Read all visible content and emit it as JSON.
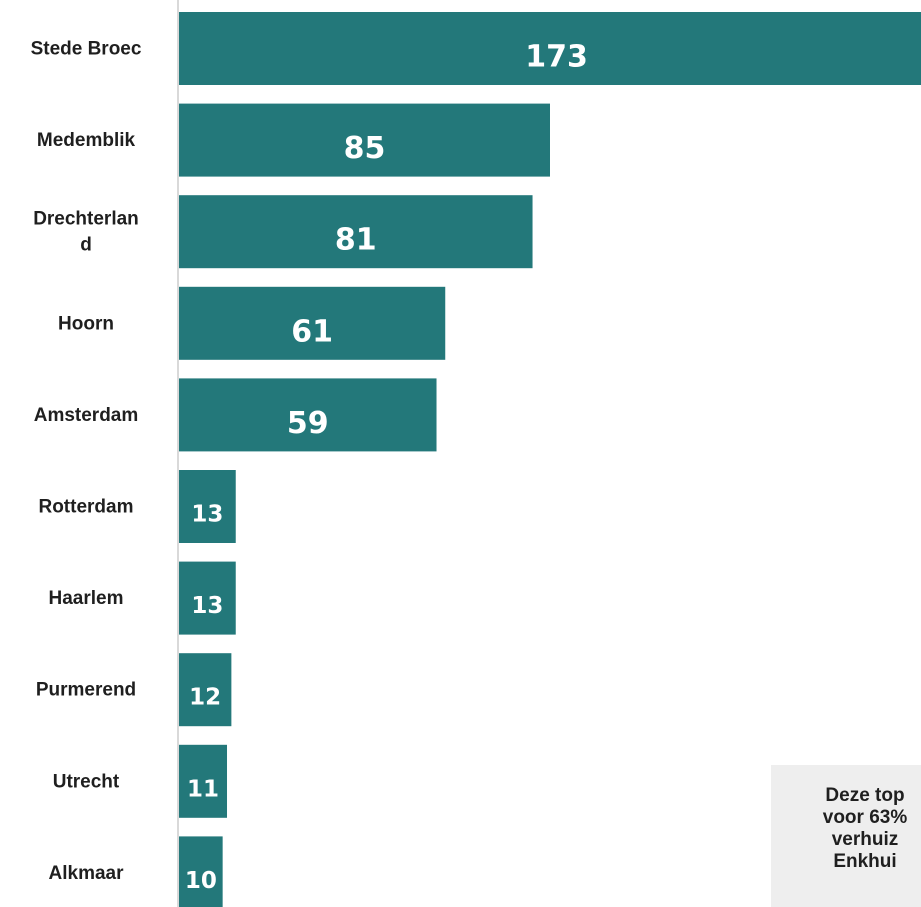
{
  "chart_data": {
    "type": "bar",
    "orientation": "horizontal",
    "categories": [
      "Stede Broec",
      "Medemblik",
      "Drechterland",
      "Hoorn",
      "Amsterdam",
      "Rotterdam",
      "Haarlem",
      "Purmerend",
      "Utrecht",
      "Alkmaar"
    ],
    "category_display": [
      "Stede Broec",
      "Medemblik",
      "Drechterlan\nd",
      "Hoorn",
      "Amsterdam",
      "Rotterdam",
      "Haarlem",
      "Purmerend",
      "Utrecht",
      "Alkmaar"
    ],
    "values": [
      173,
      85,
      81,
      61,
      59,
      13,
      13,
      12,
      11,
      10
    ],
    "value_labels": [
      "173",
      "85",
      "81",
      "61",
      "59",
      "13",
      "13",
      "12",
      "11",
      "10"
    ],
    "title": "",
    "xlabel": "",
    "ylabel": "",
    "xlim": [
      0,
      170
    ],
    "grid": false,
    "legend": "none",
    "data_labels": "inside-bar",
    "colors": {
      "bar": "#23787A",
      "axis": "#d9d9d9",
      "label": "#1f1f1f",
      "value_label": "#ffffff"
    }
  },
  "note": {
    "text": "Deze top\nvoor 63%\nverhuiz\nEnkhui",
    "background": "#eeeeee"
  }
}
